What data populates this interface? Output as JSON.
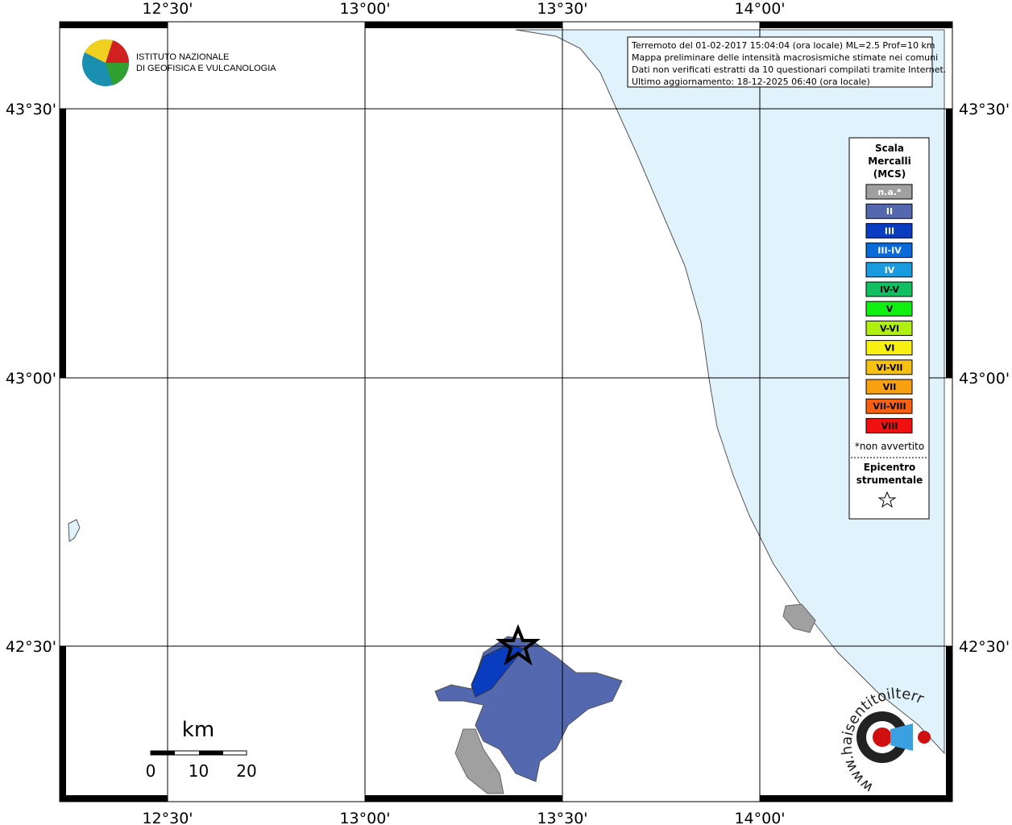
{
  "axes": {
    "top": [
      "12°30'",
      "13°00'",
      "13°30'",
      "14°00'"
    ],
    "bottom": [
      "12°30'",
      "13°00'",
      "13°30'",
      "14°00'"
    ],
    "left": [
      "43°30'",
      "43°00'",
      "42°30'"
    ],
    "right": [
      "43°30'",
      "43°00'",
      "42°30'"
    ]
  },
  "info": [
    "Terremoto del 01-02-2017 15:04:04 (ora locale) ML=2.5 Prof=10 km",
    "Mappa preliminare delle intensità macrosismiche stimate nei comuni",
    "Dati non verificati estratti da 10 questionari compilati tramite Internet.",
    "Ultimo aggiornamento: 18-12-2025 06:40 (ora locale)"
  ],
  "logo": [
    "ISTITUTO NAZIONALE",
    "DI GEOFISICA E VULCANOLOGIA"
  ],
  "legend": {
    "title": [
      "Scala",
      "Mercalli",
      "(MCS)"
    ],
    "items": [
      {
        "label": "n.a.*",
        "color": "#a0a0a0"
      },
      {
        "label": "II",
        "color": "#5468b0"
      },
      {
        "label": "III",
        "color": "#0a3cc0"
      },
      {
        "label": "III-IV",
        "color": "#0a6ad8"
      },
      {
        "label": "IV",
        "color": "#1a9be0"
      },
      {
        "label": "IV-V",
        "color": "#10c060"
      },
      {
        "label": "V",
        "color": "#10f010"
      },
      {
        "label": "V-VI",
        "color": "#b0f010"
      },
      {
        "label": "VI",
        "color": "#f8f010"
      },
      {
        "label": "VI-VII",
        "color": "#f8c010"
      },
      {
        "label": "VII",
        "color": "#f8a010"
      },
      {
        "label": "VII-VIII",
        "color": "#f86010"
      },
      {
        "label": "VIII",
        "color": "#f01010"
      }
    ],
    "note": "*non avvertito",
    "epicentre": [
      "Epicentro",
      "strumentale"
    ]
  },
  "scale": {
    "unit": "km",
    "ticks": [
      "0",
      "10",
      "20"
    ]
  },
  "site": "www.haisentitoilterremoto.it"
}
